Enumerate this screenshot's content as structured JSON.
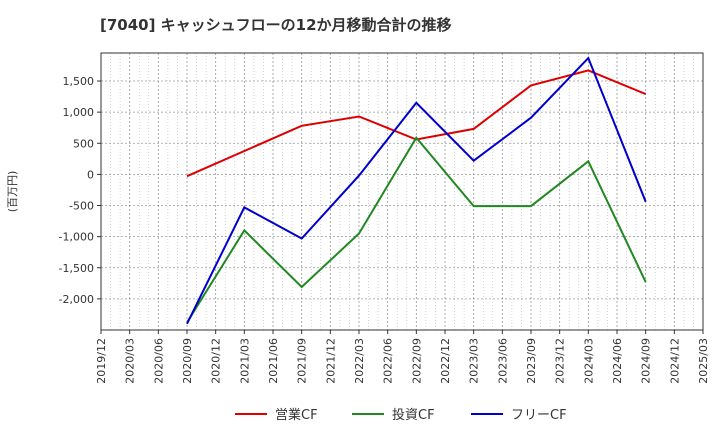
{
  "chart_data": {
    "type": "line",
    "title": "[7040]  キャッシュフローの12か月移動合計の推移",
    "ylabel": "(百万円)",
    "xlabel": "",
    "ylim": [
      -2500,
      1950
    ],
    "yticks": [
      1500,
      1000,
      500,
      0,
      -500,
      -1000,
      -1500,
      -2000
    ],
    "ytick_labels": [
      "1,500",
      "1,000",
      "500",
      "0",
      "-500",
      "-1,000",
      "-1,500",
      "-2,000"
    ],
    "x_ticks": [
      "2019/12",
      "2020/03",
      "2020/06",
      "2020/09",
      "2020/12",
      "2021/03",
      "2021/06",
      "2021/09",
      "2021/12",
      "2022/03",
      "2022/06",
      "2022/09",
      "2022/12",
      "2023/03",
      "2023/06",
      "2023/09",
      "2023/12",
      "2024/03",
      "2024/06",
      "2024/09",
      "2024/12",
      "2025/03"
    ],
    "grid": true,
    "legend_position": "bottom",
    "series": [
      {
        "name": "営業CF",
        "color": "#dd0000",
        "x": [
          "2020/09",
          "2021/09",
          "2022/03",
          "2022/09",
          "2023/03",
          "2023/09",
          "2024/03",
          "2024/09"
        ],
        "values": [
          -30,
          780,
          930,
          560,
          730,
          1430,
          1670,
          1290
        ]
      },
      {
        "name": "投資CF",
        "color": "#228822",
        "x": [
          "2020/09",
          "2021/03",
          "2021/09",
          "2022/03",
          "2022/09",
          "2023/03",
          "2023/09",
          "2024/03",
          "2024/09"
        ],
        "values": [
          -2380,
          -900,
          -1810,
          -950,
          590,
          -510,
          -510,
          210,
          -1730
        ]
      },
      {
        "name": "フリーCF",
        "color": "#0000cc",
        "x": [
          "2020/09",
          "2021/03",
          "2021/09",
          "2022/03",
          "2022/09",
          "2023/03",
          "2023/09",
          "2024/03",
          "2024/09"
        ],
        "values": [
          -2400,
          -530,
          -1030,
          -20,
          1150,
          220,
          910,
          1870,
          -440
        ]
      }
    ]
  }
}
